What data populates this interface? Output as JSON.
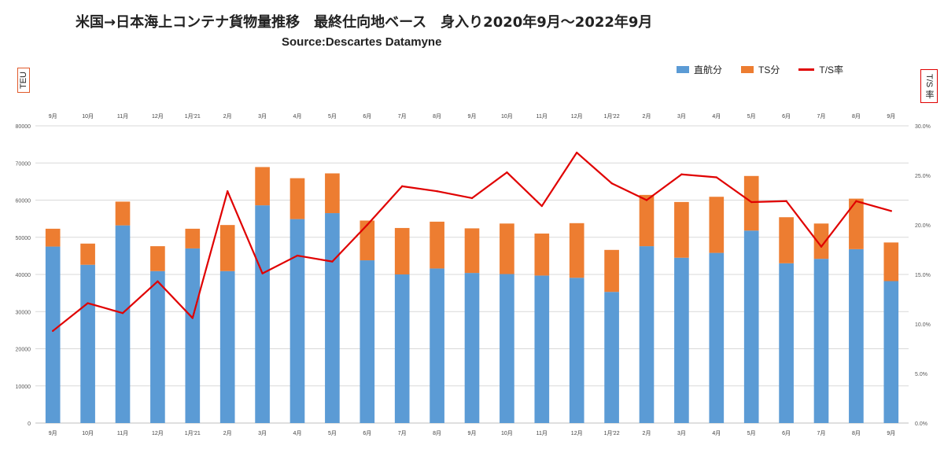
{
  "title": "米国→日本海上コンテナ貨物量推移　最終仕向地ベース　身入り2020年9月～2022年9月",
  "subtitle": "Source:Descartes Datamyne",
  "unit_left": "TEU",
  "unit_right": "T/S 率",
  "colors": {
    "direct": "#5b9bd5",
    "ts": "#ed7d31",
    "rate": "#e00000",
    "grid": "#d9d9d9"
  },
  "chart_data": {
    "type": "bar",
    "stacked": true,
    "categories": [
      "9月",
      "10月",
      "11月",
      "12月",
      "1月'21",
      "2月",
      "3月",
      "4月",
      "5月",
      "6月",
      "7月",
      "8月",
      "9月",
      "10月",
      "11月",
      "12月",
      "1月'22",
      "2月",
      "3月",
      "4月",
      "5月",
      "6月",
      "7月",
      "8月",
      "9月"
    ],
    "series": [
      {
        "name": "直航分",
        "values": [
          47500,
          42600,
          53200,
          40900,
          47000,
          40900,
          58600,
          54900,
          56500,
          43800,
          40000,
          41600,
          40400,
          40100,
          39700,
          39100,
          35300,
          47600,
          44500,
          45800,
          51800,
          43000,
          44200,
          46800,
          38200
        ]
      },
      {
        "name": "TS分",
        "values": [
          4800,
          5700,
          6400,
          6700,
          5300,
          12400,
          10300,
          11000,
          10700,
          10700,
          12500,
          12600,
          12000,
          13600,
          11300,
          14700,
          11300,
          13800,
          15000,
          15100,
          14700,
          12400,
          9500,
          13600,
          10400
        ]
      }
    ],
    "line": {
      "name": "T/S率",
      "axis": "right",
      "values": [
        9.3,
        12.1,
        11.1,
        14.3,
        10.6,
        23.4,
        15.1,
        16.9,
        16.3,
        20.0,
        23.9,
        23.4,
        22.7,
        25.3,
        21.9,
        27.3,
        24.2,
        22.5,
        25.1,
        24.8,
        22.3,
        22.4,
        17.8,
        22.4,
        21.4
      ]
    },
    "y_ticks": [
      "0",
      "10000",
      "20000",
      "30000",
      "40000",
      "50000",
      "60000",
      "70000",
      "80000"
    ],
    "y2_ticks": [
      "0.0%",
      "5.0%",
      "10.0%",
      "15.0%",
      "20.0%",
      "25.0%",
      "30.0%"
    ],
    "ylim": [
      0,
      80000
    ],
    "y2lim": [
      0,
      30
    ],
    "legend": "top-right",
    "grid": true
  }
}
